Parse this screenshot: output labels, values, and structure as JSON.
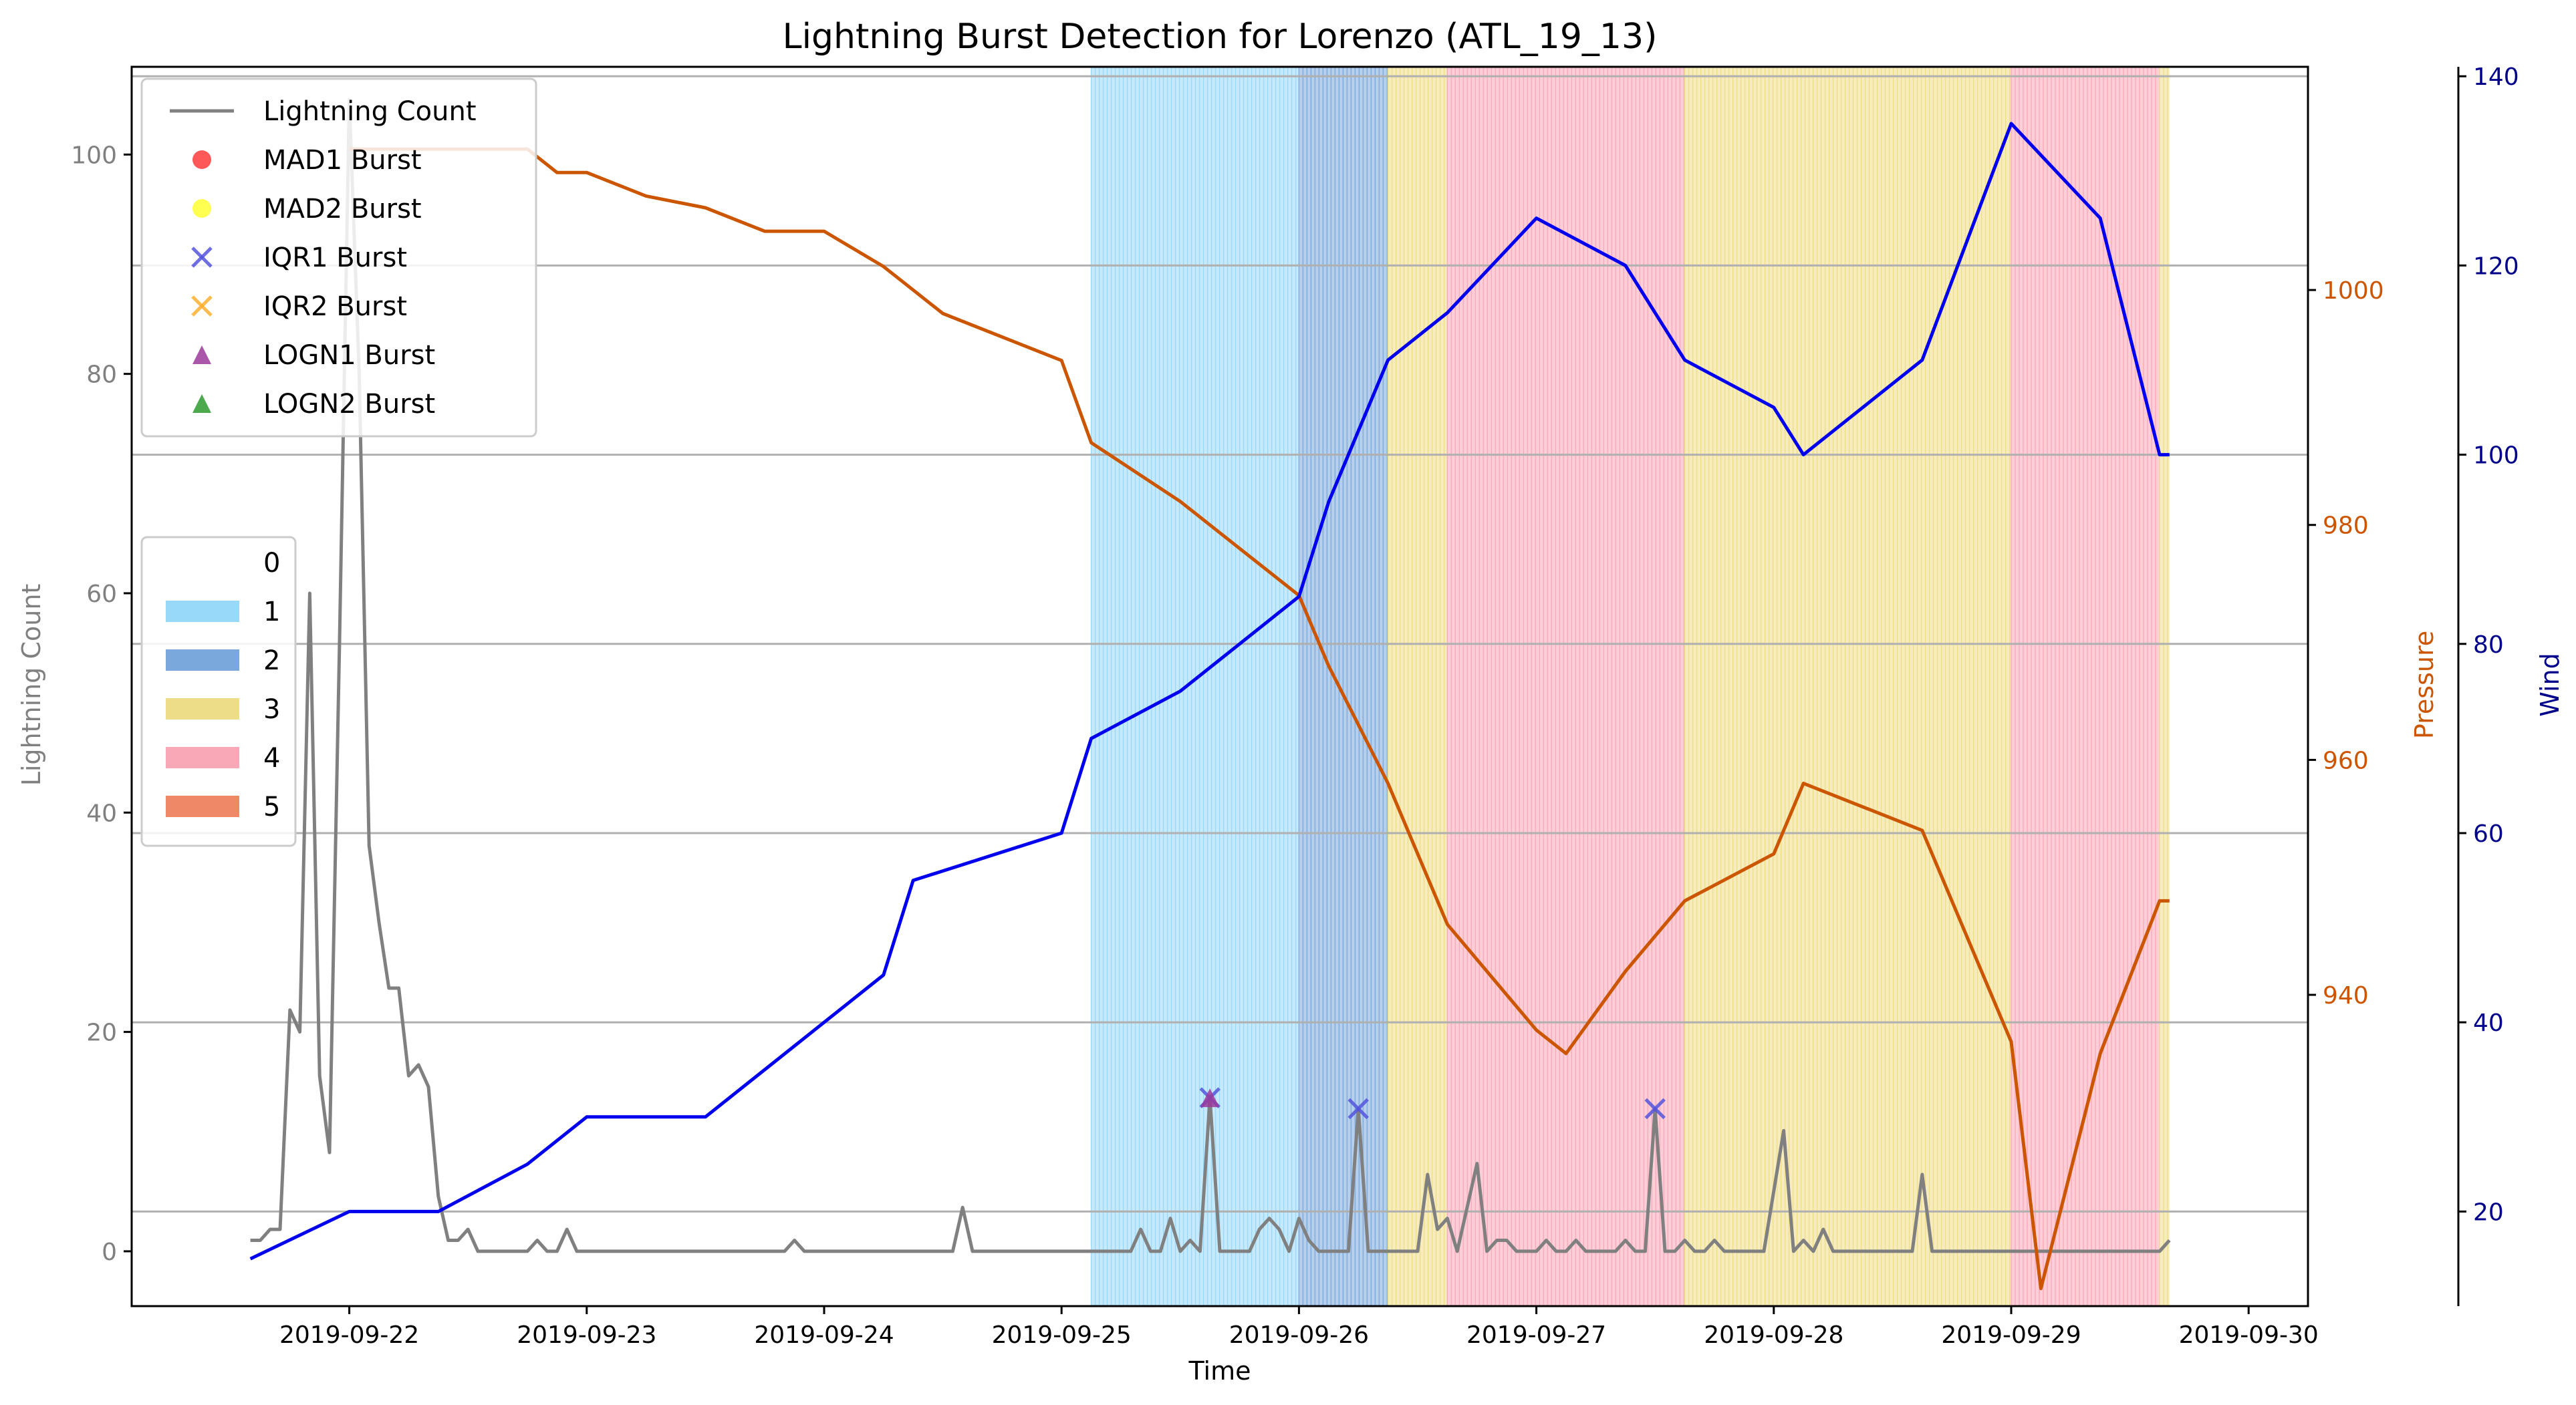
{
  "chart_data": {
    "type": "line",
    "title": "Lightning Burst Detection for Lorenzo (ATL_19_13)",
    "xlabel": "Time",
    "ylabel_left": "Lightning Count",
    "ylabel_pressure": "Pressure",
    "ylabel_wind": "Wind",
    "x_ticks": [
      "2019-09-22",
      "2019-09-23",
      "2019-09-24",
      "2019-09-25",
      "2019-09-26",
      "2019-09-27",
      "2019-09-28",
      "2019-09-29",
      "2019-09-30"
    ],
    "xlim": [
      "2019-09-21 02:00",
      "2019-09-30 06:00"
    ],
    "left_axis": {
      "ylim": [
        -5,
        108
      ],
      "ticks": [
        0,
        20,
        40,
        60,
        80,
        100
      ]
    },
    "pressure_axis": {
      "ylim": [
        913.5,
        1019
      ],
      "ticks": [
        940,
        960,
        980,
        1000
      ]
    },
    "wind_axis": {
      "ylim": [
        10,
        141
      ],
      "ticks": [
        20,
        40,
        60,
        80,
        100,
        120,
        140
      ]
    },
    "legend1": {
      "position": "upper-left",
      "entries": [
        {
          "label": "Lightning Count",
          "marker": "line",
          "color": "#808080"
        },
        {
          "label": "MAD1 Burst",
          "marker": "circle",
          "color": "#ff3b3b"
        },
        {
          "label": "MAD2 Burst",
          "marker": "circle",
          "color": "#ffff33"
        },
        {
          "label": "IQR1 Burst",
          "marker": "x",
          "color": "#5555dd"
        },
        {
          "label": "IQR2 Burst",
          "marker": "x",
          "color": "#ffb030"
        },
        {
          "label": "LOGN1 Burst",
          "marker": "triangle",
          "color": "#9b3a9b"
        },
        {
          "label": "LOGN2 Burst",
          "marker": "triangle",
          "color": "#2e9a2e"
        }
      ]
    },
    "legend2": {
      "position": "center-left",
      "entries": [
        {
          "label": "0",
          "color": "none"
        },
        {
          "label": "1",
          "color": "#98d8f8"
        },
        {
          "label": "2",
          "color": "#7aa8dc"
        },
        {
          "label": "3",
          "color": "#eedd88"
        },
        {
          "label": "4",
          "color": "#f9a8b8"
        },
        {
          "label": "5",
          "color": "#ee8866"
        }
      ]
    },
    "category_bands": [
      {
        "category": 1,
        "start": "2019-09-25 03:00",
        "end": "2019-09-26 00:00",
        "color": "#98d8f8"
      },
      {
        "category": 2,
        "start": "2019-09-26 00:00",
        "end": "2019-09-26 09:00",
        "color": "#7aa8dc"
      },
      {
        "category": 3,
        "start": "2019-09-26 09:00",
        "end": "2019-09-26 15:00",
        "color": "#eedd88"
      },
      {
        "category": 4,
        "start": "2019-09-26 15:00",
        "end": "2019-09-27 15:00",
        "color": "#f9a8b8"
      },
      {
        "category": 3,
        "start": "2019-09-27 15:00",
        "end": "2019-09-29 00:00",
        "color": "#eedd88"
      },
      {
        "category": 4,
        "start": "2019-09-29 00:00",
        "end": "2019-09-29 15:00",
        "color": "#f9a8b8"
      },
      {
        "category": 3,
        "start": "2019-09-29 15:00",
        "end": "2019-09-29 16:00",
        "color": "#eedd88"
      }
    ],
    "series": [
      {
        "name": "Lightning Count",
        "axis": "left",
        "color": "#808080",
        "points": [
          [
            "2019-09-21 14:00",
            1
          ],
          [
            "2019-09-21 15:00",
            1
          ],
          [
            "2019-09-21 16:00",
            2
          ],
          [
            "2019-09-21 17:00",
            2
          ],
          [
            "2019-09-21 18:00",
            22
          ],
          [
            "2019-09-21 19:00",
            20
          ],
          [
            "2019-09-21 20:00",
            60
          ],
          [
            "2019-09-21 21:00",
            16
          ],
          [
            "2019-09-21 22:00",
            9
          ],
          [
            "2019-09-21 23:00",
            55
          ],
          [
            "2019-09-22 00:00",
            105
          ],
          [
            "2019-09-22 01:00",
            80
          ],
          [
            "2019-09-22 02:00",
            37
          ],
          [
            "2019-09-22 03:00",
            30
          ],
          [
            "2019-09-22 04:00",
            24
          ],
          [
            "2019-09-22 05:00",
            24
          ],
          [
            "2019-09-22 06:00",
            16
          ],
          [
            "2019-09-22 07:00",
            17
          ],
          [
            "2019-09-22 08:00",
            15
          ],
          [
            "2019-09-22 09:00",
            5
          ],
          [
            "2019-09-22 10:00",
            1
          ],
          [
            "2019-09-22 11:00",
            1
          ],
          [
            "2019-09-22 12:00",
            2
          ],
          [
            "2019-09-22 13:00",
            0
          ],
          [
            "2019-09-22 18:00",
            0
          ],
          [
            "2019-09-22 19:00",
            1
          ],
          [
            "2019-09-22 20:00",
            0
          ],
          [
            "2019-09-22 21:00",
            0
          ],
          [
            "2019-09-22 22:00",
            2
          ],
          [
            "2019-09-22 23:00",
            0
          ],
          [
            "2019-09-23 20:00",
            0
          ],
          [
            "2019-09-23 21:00",
            1
          ],
          [
            "2019-09-23 22:00",
            0
          ],
          [
            "2019-09-24 13:00",
            0
          ],
          [
            "2019-09-24 14:00",
            4
          ],
          [
            "2019-09-24 15:00",
            0
          ],
          [
            "2019-09-25 07:00",
            0
          ],
          [
            "2019-09-25 08:00",
            2
          ],
          [
            "2019-09-25 09:00",
            0
          ],
          [
            "2019-09-25 10:00",
            0
          ],
          [
            "2019-09-25 11:00",
            3
          ],
          [
            "2019-09-25 12:00",
            0
          ],
          [
            "2019-09-25 13:00",
            1
          ],
          [
            "2019-09-25 14:00",
            0
          ],
          [
            "2019-09-25 15:00",
            14
          ],
          [
            "2019-09-25 16:00",
            0
          ],
          [
            "2019-09-25 17:00",
            0
          ],
          [
            "2019-09-25 18:00",
            0
          ],
          [
            "2019-09-25 19:00",
            0
          ],
          [
            "2019-09-25 20:00",
            2
          ],
          [
            "2019-09-25 21:00",
            3
          ],
          [
            "2019-09-25 22:00",
            2
          ],
          [
            "2019-09-25 23:00",
            0
          ],
          [
            "2019-09-26 00:00",
            3
          ],
          [
            "2019-09-26 01:00",
            1
          ],
          [
            "2019-09-26 02:00",
            0
          ],
          [
            "2019-09-26 05:00",
            0
          ],
          [
            "2019-09-26 06:00",
            13
          ],
          [
            "2019-09-26 07:00",
            0
          ],
          [
            "2019-09-26 12:00",
            0
          ],
          [
            "2019-09-26 13:00",
            7
          ],
          [
            "2019-09-26 14:00",
            2
          ],
          [
            "2019-09-26 15:00",
            3
          ],
          [
            "2019-09-26 16:00",
            0
          ],
          [
            "2019-09-26 17:00",
            4
          ],
          [
            "2019-09-26 18:00",
            8
          ],
          [
            "2019-09-26 19:00",
            0
          ],
          [
            "2019-09-26 20:00",
            1
          ],
          [
            "2019-09-26 21:00",
            1
          ],
          [
            "2019-09-26 22:00",
            0
          ],
          [
            "2019-09-27 00:00",
            0
          ],
          [
            "2019-09-27 01:00",
            1
          ],
          [
            "2019-09-27 02:00",
            0
          ],
          [
            "2019-09-27 03:00",
            0
          ],
          [
            "2019-09-27 04:00",
            1
          ],
          [
            "2019-09-27 05:00",
            0
          ],
          [
            "2019-09-27 08:00",
            0
          ],
          [
            "2019-09-27 09:00",
            1
          ],
          [
            "2019-09-27 10:00",
            0
          ],
          [
            "2019-09-27 11:00",
            0
          ],
          [
            "2019-09-27 12:00",
            13
          ],
          [
            "2019-09-27 13:00",
            0
          ],
          [
            "2019-09-27 14:00",
            0
          ],
          [
            "2019-09-27 15:00",
            1
          ],
          [
            "2019-09-27 16:00",
            0
          ],
          [
            "2019-09-27 17:00",
            0
          ],
          [
            "2019-09-27 18:00",
            1
          ],
          [
            "2019-09-27 19:00",
            0
          ],
          [
            "2019-09-27 23:00",
            0
          ],
          [
            "2019-09-28 01:00",
            11
          ],
          [
            "2019-09-28 02:00",
            0
          ],
          [
            "2019-09-28 03:00",
            1
          ],
          [
            "2019-09-28 04:00",
            0
          ],
          [
            "2019-09-28 05:00",
            2
          ],
          [
            "2019-09-28 06:00",
            0
          ],
          [
            "2019-09-28 14:00",
            0
          ],
          [
            "2019-09-28 15:00",
            7
          ],
          [
            "2019-09-28 16:00",
            0
          ],
          [
            "2019-09-29 15:00",
            0
          ],
          [
            "2019-09-29 16:00",
            1
          ]
        ]
      },
      {
        "name": "Pressure",
        "axis": "pressure",
        "color": "#cc5500",
        "step": true,
        "points": [
          [
            "2019-09-22 00:00",
            1012
          ],
          [
            "2019-09-22 09:00",
            1012
          ],
          [
            "2019-09-22 12:00",
            1012
          ],
          [
            "2019-09-22 18:00",
            1012
          ],
          [
            "2019-09-22 21:00",
            1010
          ],
          [
            "2019-09-23 00:00",
            1010
          ],
          [
            "2019-09-23 06:00",
            1008
          ],
          [
            "2019-09-23 12:00",
            1007
          ],
          [
            "2019-09-23 18:00",
            1005
          ],
          [
            "2019-09-24 00:00",
            1005
          ],
          [
            "2019-09-24 06:00",
            1002
          ],
          [
            "2019-09-24 09:00",
            1000
          ],
          [
            "2019-09-24 12:00",
            998
          ],
          [
            "2019-09-25 00:00",
            994
          ],
          [
            "2019-09-25 03:00",
            987
          ],
          [
            "2019-09-25 12:00",
            982
          ],
          [
            "2019-09-25 18:00",
            978
          ],
          [
            "2019-09-26 00:00",
            974
          ],
          [
            "2019-09-26 03:00",
            968
          ],
          [
            "2019-09-26 09:00",
            958
          ],
          [
            "2019-09-26 15:00",
            946
          ],
          [
            "2019-09-27 00:00",
            937
          ],
          [
            "2019-09-27 03:00",
            935
          ],
          [
            "2019-09-27 09:00",
            942
          ],
          [
            "2019-09-27 15:00",
            948
          ],
          [
            "2019-09-28 00:00",
            952
          ],
          [
            "2019-09-28 03:00",
            958
          ],
          [
            "2019-09-28 15:00",
            954
          ],
          [
            "2019-09-29 00:00",
            936
          ],
          [
            "2019-09-29 03:00",
            915
          ],
          [
            "2019-09-29 09:00",
            935
          ],
          [
            "2019-09-29 15:00",
            948
          ],
          [
            "2019-09-29 16:00",
            948
          ]
        ]
      },
      {
        "name": "Wind",
        "axis": "wind",
        "color": "#0000ee",
        "step": true,
        "points": [
          [
            "2019-09-21 14:00",
            15
          ],
          [
            "2019-09-22 00:00",
            20
          ],
          [
            "2019-09-22 09:00",
            20
          ],
          [
            "2019-09-22 18:00",
            25
          ],
          [
            "2019-09-23 00:00",
            30
          ],
          [
            "2019-09-23 12:00",
            30
          ],
          [
            "2019-09-23 18:00",
            35
          ],
          [
            "2019-09-24 00:00",
            40
          ],
          [
            "2019-09-24 06:00",
            45
          ],
          [
            "2019-09-24 09:00",
            55
          ],
          [
            "2019-09-25 00:00",
            60
          ],
          [
            "2019-09-25 03:00",
            70
          ],
          [
            "2019-09-25 12:00",
            75
          ],
          [
            "2019-09-25 18:00",
            80
          ],
          [
            "2019-09-26 00:00",
            85
          ],
          [
            "2019-09-26 03:00",
            95
          ],
          [
            "2019-09-26 09:00",
            110
          ],
          [
            "2019-09-26 15:00",
            115
          ],
          [
            "2019-09-27 00:00",
            125
          ],
          [
            "2019-09-27 09:00",
            120
          ],
          [
            "2019-09-27 15:00",
            110
          ],
          [
            "2019-09-28 00:00",
            105
          ],
          [
            "2019-09-28 03:00",
            100
          ],
          [
            "2019-09-28 15:00",
            110
          ],
          [
            "2019-09-29 00:00",
            135
          ],
          [
            "2019-09-29 09:00",
            125
          ],
          [
            "2019-09-29 15:00",
            100
          ],
          [
            "2019-09-29 16:00",
            100
          ]
        ]
      }
    ],
    "bursts": [
      {
        "type": "IQR1 Burst",
        "marker": "x",
        "color": "#5555dd",
        "x": "2019-09-25 15:00",
        "y": 14
      },
      {
        "type": "LOGN1 Burst",
        "marker": "triangle",
        "color": "#9b3a9b",
        "x": "2019-09-25 15:00",
        "y": 14
      },
      {
        "type": "IQR1 Burst",
        "marker": "x",
        "color": "#5555dd",
        "x": "2019-09-26 06:00",
        "y": 13
      },
      {
        "type": "IQR1 Burst",
        "marker": "x",
        "color": "#5555dd",
        "x": "2019-09-27 12:00",
        "y": 13
      }
    ],
    "grid": "horizontal lines on right axis",
    "colors": {
      "lightning": "#808080",
      "pressure": "#cc5500",
      "wind": "#0000ee",
      "wind_axis": "#00008b",
      "grid": "#b0b0b0"
    }
  }
}
